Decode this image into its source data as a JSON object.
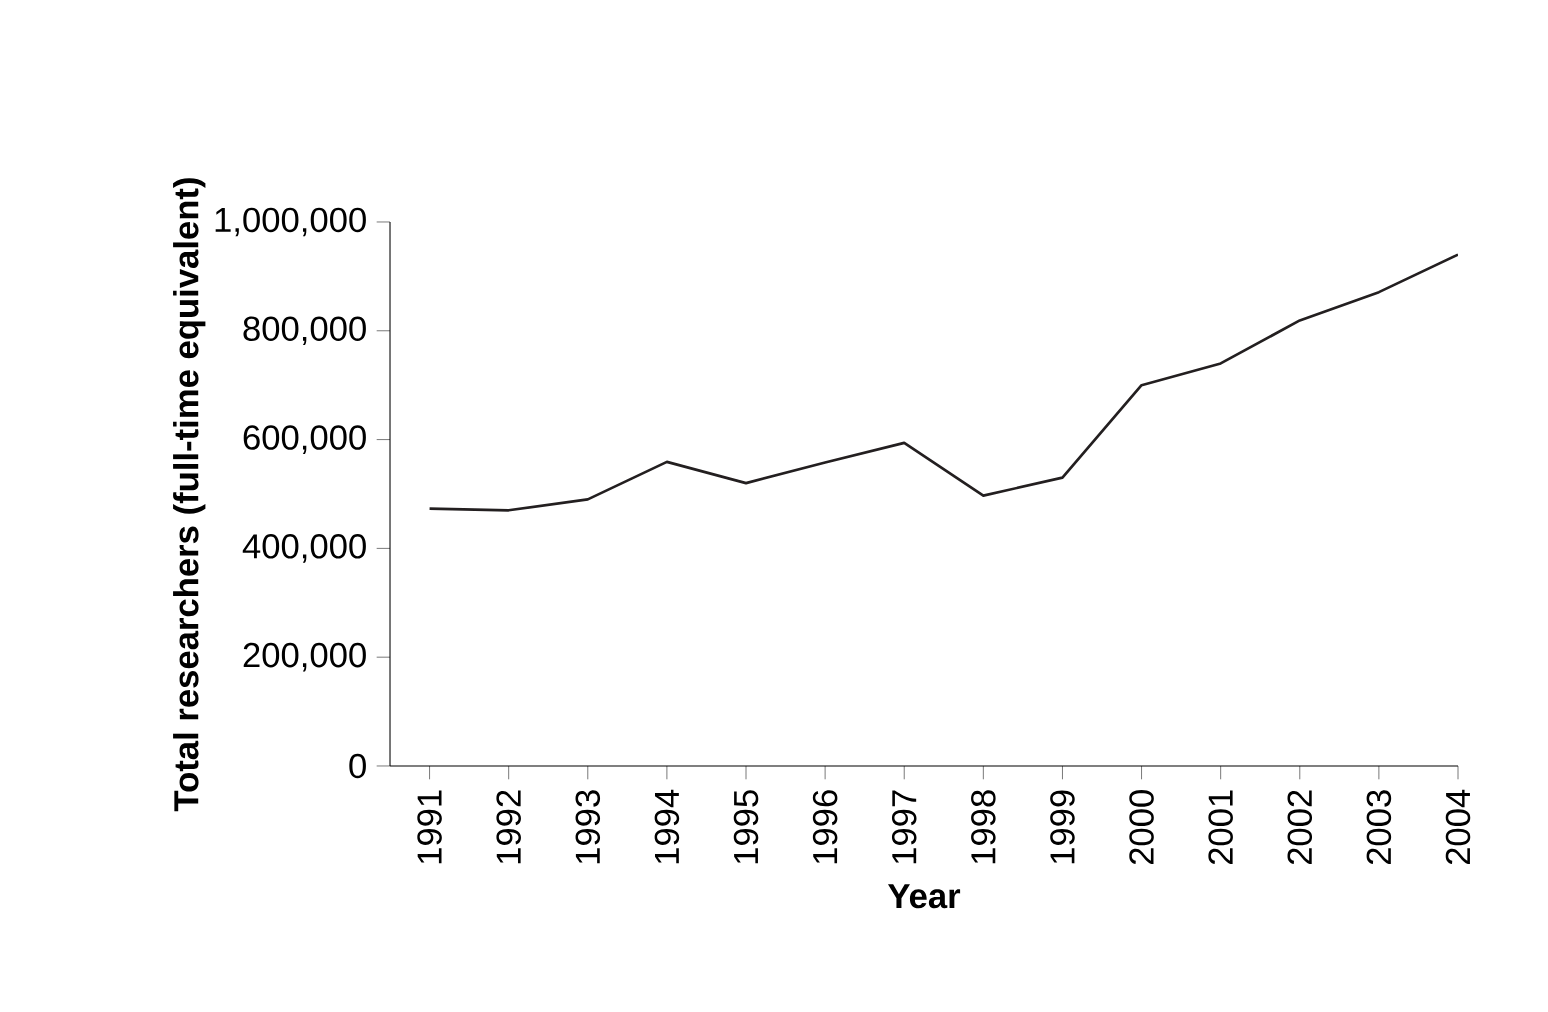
{
  "chart_data": {
    "type": "line",
    "xlabel": "Year",
    "ylabel": "Total researchers (full-time equivalent)",
    "categories": [
      "1991",
      "1992",
      "1993",
      "1994",
      "1995",
      "1996",
      "1997",
      "1998",
      "1999",
      "2000",
      "2001",
      "2002",
      "2003",
      "2004"
    ],
    "series": [
      {
        "color": "#231f20",
        "values": [
          473000,
          470000,
          490000,
          559000,
          520000,
          558000,
          594000,
          497000,
          530000,
          700000,
          740000,
          819000,
          871000,
          940000
        ]
      }
    ],
    "ylim": [
      0,
      1000000
    ],
    "yticks": [
      {
        "value": 0,
        "label": "0"
      },
      {
        "value": 200000,
        "label": "200,000"
      },
      {
        "value": 400000,
        "label": "400,000"
      },
      {
        "value": 600000,
        "label": "600,000"
      },
      {
        "value": 800000,
        "label": "800,000"
      },
      {
        "value": 1000000,
        "label": "1,000,000"
      }
    ],
    "grid": false,
    "marker": "none",
    "line_style": "solid"
  }
}
